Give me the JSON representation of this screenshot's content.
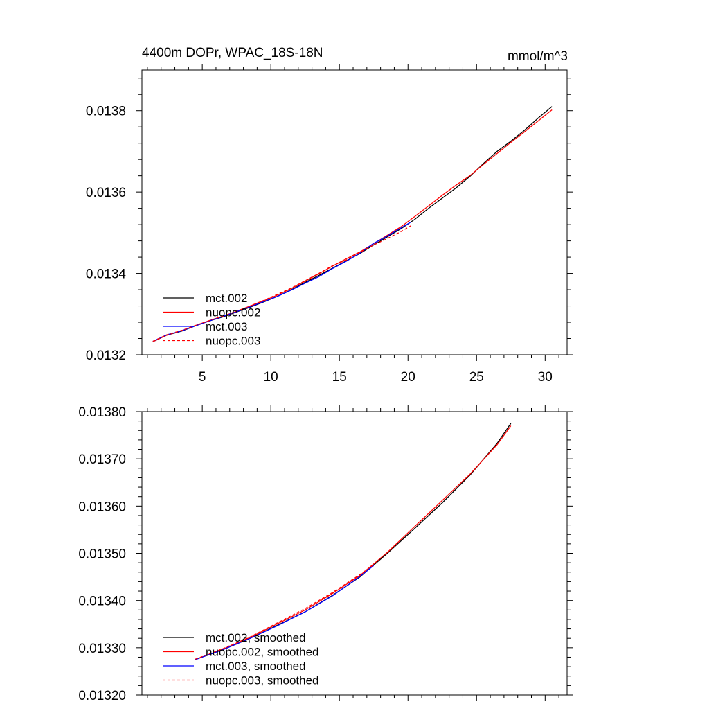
{
  "chart_data": [
    {
      "type": "line",
      "panel": "top",
      "title": "4400m DOPr, WPAC_18S-18N",
      "units": "mmol/m^3",
      "xlabel": "",
      "ylabel": "",
      "xlim": [
        0.6,
        31.6
      ],
      "ylim": [
        0.0132,
        0.0139
      ],
      "x_ticks": [
        5,
        10,
        15,
        20,
        25,
        30
      ],
      "x_tick_labels": [
        "5",
        "10",
        "15",
        "20",
        "25",
        "30"
      ],
      "y_ticks": [
        0.0132,
        0.0134,
        0.0136,
        0.0138
      ],
      "y_tick_labels": [
        "0.0132",
        "0.0134",
        "0.0136",
        "0.0138"
      ],
      "legend_position": "bottom-left",
      "series": [
        {
          "name": "mct.002",
          "color": "#000000",
          "dash": "solid",
          "x": [
            1.4,
            2.4,
            3.5,
            4.5,
            5.5,
            6.5,
            7.5,
            8.5,
            9.5,
            10.5,
            11.5,
            12.5,
            13.5,
            14.5,
            15.5,
            16.5,
            17.5,
            18.5,
            19.5,
            20.5,
            21.5,
            22.5,
            23.5,
            24.5,
            25.5,
            26.5,
            27.5,
            28.5,
            29.5,
            30.5
          ],
          "values": [
            0.013232,
            0.013248,
            0.013258,
            0.013271,
            0.013283,
            0.013293,
            0.013305,
            0.013317,
            0.01333,
            0.013344,
            0.01336,
            0.013378,
            0.013395,
            0.013413,
            0.013431,
            0.013449,
            0.01347,
            0.01349,
            0.01351,
            0.013533,
            0.01356,
            0.013585,
            0.01361,
            0.013638,
            0.01367,
            0.0137,
            0.013725,
            0.013752,
            0.013782,
            0.01381
          ]
        },
        {
          "name": "nuopc.002",
          "color": "#ff0000",
          "dash": "solid",
          "x": [
            1.4,
            2.4,
            3.5,
            4.5,
            5.5,
            6.5,
            7.5,
            8.5,
            9.5,
            10.5,
            11.5,
            12.5,
            13.5,
            14.5,
            15.5,
            16.5,
            17.5,
            18.5,
            19.5,
            20.5,
            21.5,
            22.5,
            23.5,
            24.5,
            25.5,
            26.5,
            27.5,
            28.5,
            29.5,
            30.5
          ],
          "values": [
            0.013232,
            0.013248,
            0.013259,
            0.013272,
            0.013284,
            0.013295,
            0.013307,
            0.01332,
            0.013333,
            0.013347,
            0.013363,
            0.013381,
            0.013399,
            0.013418,
            0.013436,
            0.013453,
            0.013473,
            0.013494,
            0.013515,
            0.01354,
            0.013566,
            0.013592,
            0.013617,
            0.01364,
            0.013668,
            0.013695,
            0.013722,
            0.013748,
            0.013775,
            0.013802
          ]
        },
        {
          "name": "mct.003",
          "color": "#0000ff",
          "dash": "solid",
          "x": [
            1.4,
            2.4,
            3.5,
            4.5,
            5.5,
            6.5,
            7.5,
            8.5,
            9.5,
            10.5,
            11.5,
            12.5,
            13.5,
            14.5,
            15.5,
            16.5,
            17.5,
            18.5,
            19.5,
            20.2
          ],
          "values": [
            0.013233,
            0.013249,
            0.013259,
            0.013271,
            0.013283,
            0.013294,
            0.013306,
            0.013318,
            0.013331,
            0.013344,
            0.013359,
            0.013376,
            0.013392,
            0.013412,
            0.01343,
            0.01345,
            0.013474,
            0.013492,
            0.013512,
            0.013526
          ]
        },
        {
          "name": "nuopc.003",
          "color": "#ff0000",
          "dash": "dashed",
          "x": [
            1.4,
            2.4,
            3.5,
            4.5,
            5.5,
            6.5,
            7.5,
            8.5,
            9.5,
            10.5,
            11.5,
            12.5,
            13.5,
            14.5,
            15.5,
            16.5,
            17.5,
            18.5,
            19.5,
            20.2
          ],
          "values": [
            0.013233,
            0.013249,
            0.01326,
            0.013272,
            0.013284,
            0.013295,
            0.013307,
            0.01332,
            0.013334,
            0.013349,
            0.013364,
            0.013382,
            0.0134,
            0.013419,
            0.013433,
            0.013452,
            0.01347,
            0.013486,
            0.013503,
            0.013517
          ]
        }
      ]
    },
    {
      "type": "line",
      "panel": "bottom",
      "title": "",
      "xlabel": "",
      "ylabel": "",
      "xlim": [
        0.6,
        31.6
      ],
      "ylim": [
        0.0132,
        0.0138
      ],
      "x_ticks": [
        5,
        10,
        15,
        20,
        25,
        30
      ],
      "y_ticks": [
        0.0132,
        0.0133,
        0.0134,
        0.0135,
        0.0136,
        0.0137,
        0.0138
      ],
      "y_tick_labels": [
        "0.01320",
        "0.01330",
        "0.01340",
        "0.01350",
        "0.01360",
        "0.01370",
        "0.01380"
      ],
      "legend_position": "bottom-left",
      "series": [
        {
          "name": "mct.002, smoothed",
          "color": "#000000",
          "dash": "solid",
          "x": [
            4.5,
            6.5,
            8.5,
            10.5,
            12.5,
            14.5,
            16.5,
            18.5,
            20.5,
            22.5,
            24.5,
            26.5,
            27.5
          ],
          "values": [
            0.013275,
            0.013296,
            0.01332,
            0.013348,
            0.013376,
            0.013411,
            0.01345,
            0.0135,
            0.013553,
            0.013607,
            0.013665,
            0.013733,
            0.013775
          ]
        },
        {
          "name": "nuopc.002, smoothed",
          "color": "#ff0000",
          "dash": "solid",
          "x": [
            4.5,
            6.5,
            8.5,
            10.5,
            12.5,
            14.5,
            16.5,
            18.5,
            20.5,
            22.5,
            24.5,
            26.5,
            27.5
          ],
          "values": [
            0.013275,
            0.013297,
            0.013322,
            0.013351,
            0.01338,
            0.013415,
            0.013453,
            0.013502,
            0.013557,
            0.013612,
            0.013667,
            0.01373,
            0.01377
          ]
        },
        {
          "name": "mct.003, smoothed",
          "color": "#0000ff",
          "dash": "solid",
          "x": [
            4.5,
            6.5,
            8.5,
            10.5,
            12.5,
            14.5,
            16.5,
            17.5
          ],
          "values": [
            0.013275,
            0.013296,
            0.01332,
            0.013347,
            0.013376,
            0.01341,
            0.013451,
            0.013474
          ]
        },
        {
          "name": "nuopc.003, smoothed",
          "color": "#ff0000",
          "dash": "dashed",
          "x": [
            4.5,
            6.5,
            8.5,
            10.5,
            12.5,
            14.5,
            16.5,
            17.5
          ],
          "values": [
            0.013276,
            0.013298,
            0.013323,
            0.013353,
            0.013383,
            0.013417,
            0.013455,
            0.013476
          ]
        }
      ]
    }
  ]
}
